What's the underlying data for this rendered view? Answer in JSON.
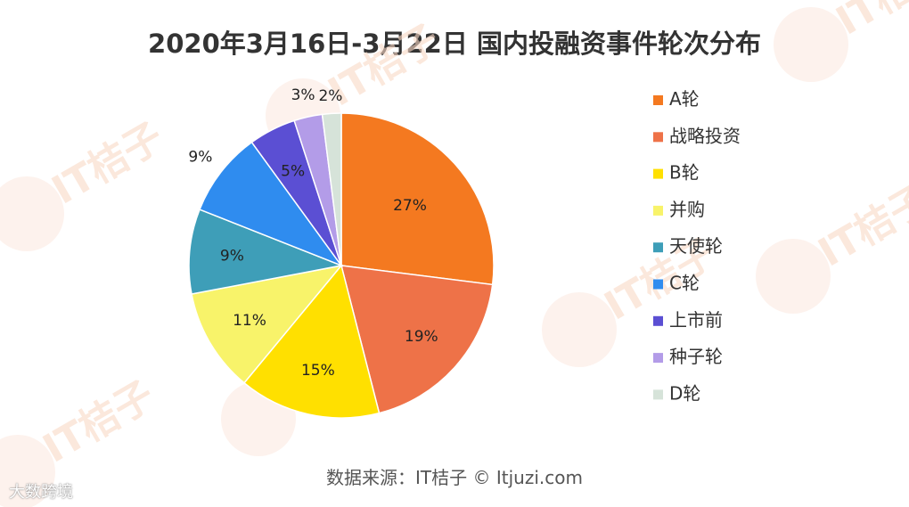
{
  "chart_data": {
    "type": "pie",
    "title": "2020年3月16日-3月22日 国内投融资事件轮次分布",
    "slices": [
      {
        "name": "A轮",
        "value": 27,
        "label": "27%",
        "color": "#F47920"
      },
      {
        "name": "战略投资",
        "value": 19,
        "label": "19%",
        "color": "#EE7248"
      },
      {
        "name": "B轮",
        "value": 15,
        "label": "15%",
        "color": "#FFE000"
      },
      {
        "name": "并购",
        "value": 11,
        "label": "11%",
        "color": "#F8F36A"
      },
      {
        "name": "天使轮",
        "value": 9,
        "label": "9%",
        "color": "#3E9EB8"
      },
      {
        "name": "C轮",
        "value": 9,
        "label": "9%",
        "color": "#2F8CEF"
      },
      {
        "name": "上市前",
        "value": 5,
        "label": "5%",
        "color": "#5B4FD3"
      },
      {
        "name": "种子轮",
        "value": 3,
        "label": "3%",
        "color": "#B39CE8"
      },
      {
        "name": "D轮",
        "value": 2,
        "label": "2%",
        "color": "#D6E3D9"
      }
    ],
    "legend_position": "right"
  },
  "source_text": "数据来源：IT桔子 © Itjuzi.com",
  "watermark": "IT桔子 ITJUZI.COM",
  "corner_logo": "大数跨境"
}
